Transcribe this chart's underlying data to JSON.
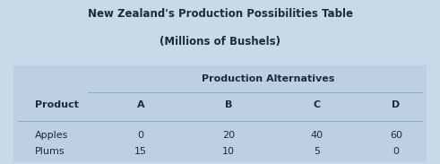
{
  "title_line1": "New Zealand's Production Possibilities Table",
  "title_line2": "(Millions of Bushels)",
  "col_header_label": "Production Alternatives",
  "col_headers": [
    "A",
    "B",
    "C",
    "D"
  ],
  "data": {
    "Apples": [
      0,
      20,
      40,
      60
    ],
    "Plums": [
      15,
      10,
      5,
      0
    ]
  },
  "background_color": "#c9d9ea",
  "table_bg_color": "#bdd0e3",
  "title_color": "#1c2b3a",
  "text_color": "#1c2b3a",
  "line_color": "#8aaec8",
  "title_fontsize": 8.5,
  "header_fontsize": 8.0,
  "cell_fontsize": 8.0,
  "fig_width": 4.91,
  "fig_height": 1.83,
  "dpi": 100
}
